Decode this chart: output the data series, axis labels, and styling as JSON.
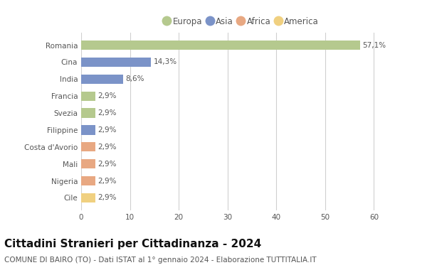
{
  "categories": [
    "Romania",
    "Cina",
    "India",
    "Francia",
    "Svezia",
    "Filippine",
    "Costa d'Avorio",
    "Mali",
    "Nigeria",
    "Cile"
  ],
  "values": [
    57.1,
    14.3,
    8.6,
    2.9,
    2.9,
    2.9,
    2.9,
    2.9,
    2.9,
    2.9
  ],
  "labels": [
    "57,1%",
    "14,3%",
    "8,6%",
    "2,9%",
    "2,9%",
    "2,9%",
    "2,9%",
    "2,9%",
    "2,9%",
    "2,9%"
  ],
  "colors": [
    "#b5c98e",
    "#7b93c8",
    "#7b93c8",
    "#b5c98e",
    "#b5c98e",
    "#7b93c8",
    "#e8a882",
    "#e8a882",
    "#e8a882",
    "#f0d080"
  ],
  "legend_labels": [
    "Europa",
    "Asia",
    "Africa",
    "America"
  ],
  "legend_colors": [
    "#b5c98e",
    "#7b93c8",
    "#e8a882",
    "#f0d080"
  ],
  "xlim": [
    0,
    63
  ],
  "xticks": [
    0,
    10,
    20,
    30,
    40,
    50,
    60
  ],
  "title": "Cittadini Stranieri per Cittadinanza - 2024",
  "subtitle": "COMUNE DI BAIRO (TO) - Dati ISTAT al 1° gennaio 2024 - Elaborazione TUTTITALIA.IT",
  "background_color": "#ffffff",
  "grid_color": "#d0d0d0",
  "bar_height": 0.55,
  "title_fontsize": 11,
  "subtitle_fontsize": 7.5,
  "label_fontsize": 7.5,
  "tick_fontsize": 7.5,
  "legend_fontsize": 8.5
}
